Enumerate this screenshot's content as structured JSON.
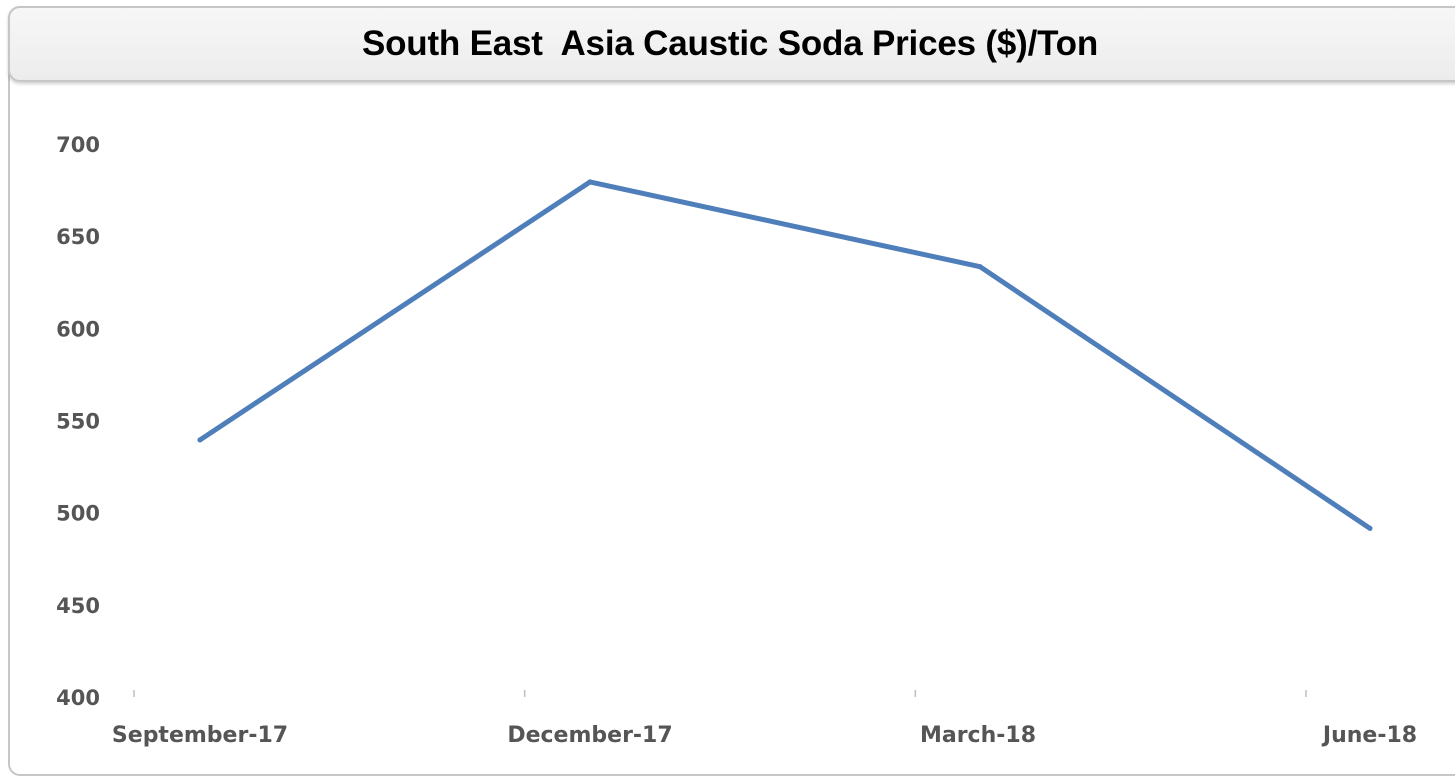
{
  "chart_data": {
    "type": "line",
    "title": "South East  Asia Caustic Soda Prices ($)/Ton",
    "xlabel": "",
    "ylabel": "",
    "categories": [
      "September-17",
      "December-17",
      "March-18",
      "June-18"
    ],
    "yticks": [
      "400",
      "450",
      "500",
      "550",
      "600",
      "650",
      "700"
    ],
    "ylim": [
      400,
      700
    ],
    "series": [
      {
        "values": [
          540,
          680,
          634,
          492
        ],
        "color": "#4f7fba"
      }
    ],
    "grid": false,
    "legend": "none"
  }
}
